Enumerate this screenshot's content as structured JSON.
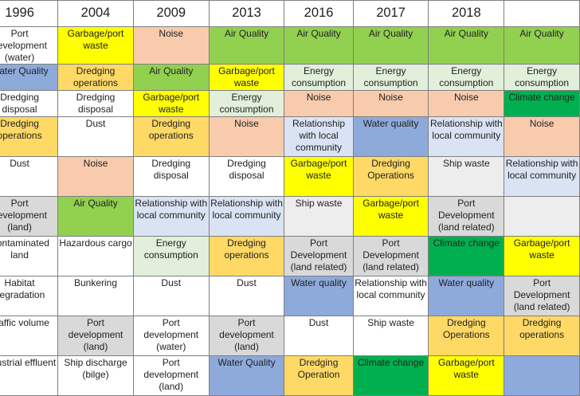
{
  "colors": {
    "white": "#ffffff",
    "yellow": "#ffff00",
    "salmon": "#f8cbad",
    "green": "#92d050",
    "blue": "#8eaadb",
    "orange": "#ffd966",
    "lightgreen": "#e2efda",
    "lightblue": "#dae3f3",
    "lightgrey": "#ededed",
    "grey": "#d9d9d9",
    "darkgreen": "#00b050"
  },
  "columns": [
    "1996",
    "2004",
    "2009",
    "2013",
    "2016",
    "2017",
    "2018",
    ""
  ],
  "rows": [
    [
      [
        "Port development (water)",
        "white"
      ],
      [
        "Garbage/port waste",
        "yellow"
      ],
      [
        "Noise",
        "salmon"
      ],
      [
        "Air Quality",
        "green"
      ],
      [
        "Air Quality",
        "green"
      ],
      [
        "Air Quality",
        "green"
      ],
      [
        "Air Quality",
        "green"
      ],
      [
        "Air Quality",
        "green"
      ]
    ],
    [
      [
        "Water Quality",
        "blue"
      ],
      [
        "Dredging operations",
        "orange"
      ],
      [
        "Air Quality",
        "green"
      ],
      [
        "Garbage/port waste",
        "yellow"
      ],
      [
        "Energy consumption",
        "lightgreen"
      ],
      [
        "Energy consumption",
        "lightgreen"
      ],
      [
        "Energy consumption",
        "lightgreen"
      ],
      [
        "Energy consumption",
        "lightgreen"
      ]
    ],
    [
      [
        "Dredging disposal",
        "white"
      ],
      [
        "Dredging disposal",
        "white"
      ],
      [
        "Garbage/port waste",
        "yellow"
      ],
      [
        "Energy consumption",
        "lightgreen"
      ],
      [
        "Noise",
        "salmon"
      ],
      [
        "Noise",
        "salmon"
      ],
      [
        "Noise",
        "salmon"
      ],
      [
        "Climate change",
        "darkgreen"
      ]
    ],
    [
      [
        "Dredging operations",
        "orange"
      ],
      [
        "Dust",
        "white"
      ],
      [
        "Dredging operations",
        "orange"
      ],
      [
        "Noise",
        "salmon"
      ],
      [
        "Relationship with local community",
        "lightblue"
      ],
      [
        "Water quality",
        "blue"
      ],
      [
        "Relationship with local community",
        "lightblue"
      ],
      [
        "Noise",
        "salmon"
      ]
    ],
    [
      [
        "Dust",
        "white"
      ],
      [
        "Noise",
        "salmon"
      ],
      [
        "Dredging disposal",
        "white"
      ],
      [
        "Dredging disposal",
        "white"
      ],
      [
        "Garbage/port waste",
        "yellow"
      ],
      [
        "Dredging Operations",
        "orange"
      ],
      [
        "Ship waste",
        "lightgrey"
      ],
      [
        "Relationship with local community",
        "lightblue"
      ]
    ],
    [
      [
        "Port development (land)",
        "grey"
      ],
      [
        "Air Quality",
        "green"
      ],
      [
        "Relationship with local community",
        "lightblue"
      ],
      [
        "Relationship with local community",
        "lightblue"
      ],
      [
        "Ship waste",
        "lightgrey"
      ],
      [
        "Garbage/port waste",
        "yellow"
      ],
      [
        "Port Development (land related)",
        "grey"
      ],
      [
        "",
        "lightgrey"
      ]
    ],
    [
      [
        "Contaminated land",
        "white"
      ],
      [
        "Hazardous cargo",
        "white"
      ],
      [
        "Energy consumption",
        "lightgreen"
      ],
      [
        "Dredging operations",
        "orange"
      ],
      [
        "Port Development (land related)",
        "grey"
      ],
      [
        "Port Development (land related)",
        "grey"
      ],
      [
        "Climate change",
        "darkgreen"
      ],
      [
        "Garbage/port waste",
        "yellow"
      ]
    ],
    [
      [
        "Habitat degradation",
        "white"
      ],
      [
        "Bunkering",
        "white"
      ],
      [
        "Dust",
        "white"
      ],
      [
        "Dust",
        "white"
      ],
      [
        "Water quality",
        "blue"
      ],
      [
        "Relationship with local community",
        "white"
      ],
      [
        "Water quality",
        "blue"
      ],
      [
        "Port Development (land related)",
        "grey"
      ]
    ],
    [
      [
        "Traffic volume",
        "white"
      ],
      [
        "Port development (land)",
        "grey"
      ],
      [
        "Port development (water)",
        "white"
      ],
      [
        "Port development (land)",
        "grey"
      ],
      [
        "Dust",
        "white"
      ],
      [
        "Ship waste",
        "white"
      ],
      [
        "Dredging Operations",
        "orange"
      ],
      [
        "Dredging operations",
        "orange"
      ]
    ],
    [
      [
        "Industrial effluent",
        "white"
      ],
      [
        "Ship discharge (bilge)",
        "white"
      ],
      [
        "Port development (land)",
        "white"
      ],
      [
        "Water Quality",
        "blue"
      ],
      [
        "Dredging Operation",
        "orange"
      ],
      [
        "Climate change",
        "darkgreen"
      ],
      [
        "Garbage/port waste",
        "yellow"
      ],
      [
        "",
        "blue"
      ]
    ]
  ]
}
